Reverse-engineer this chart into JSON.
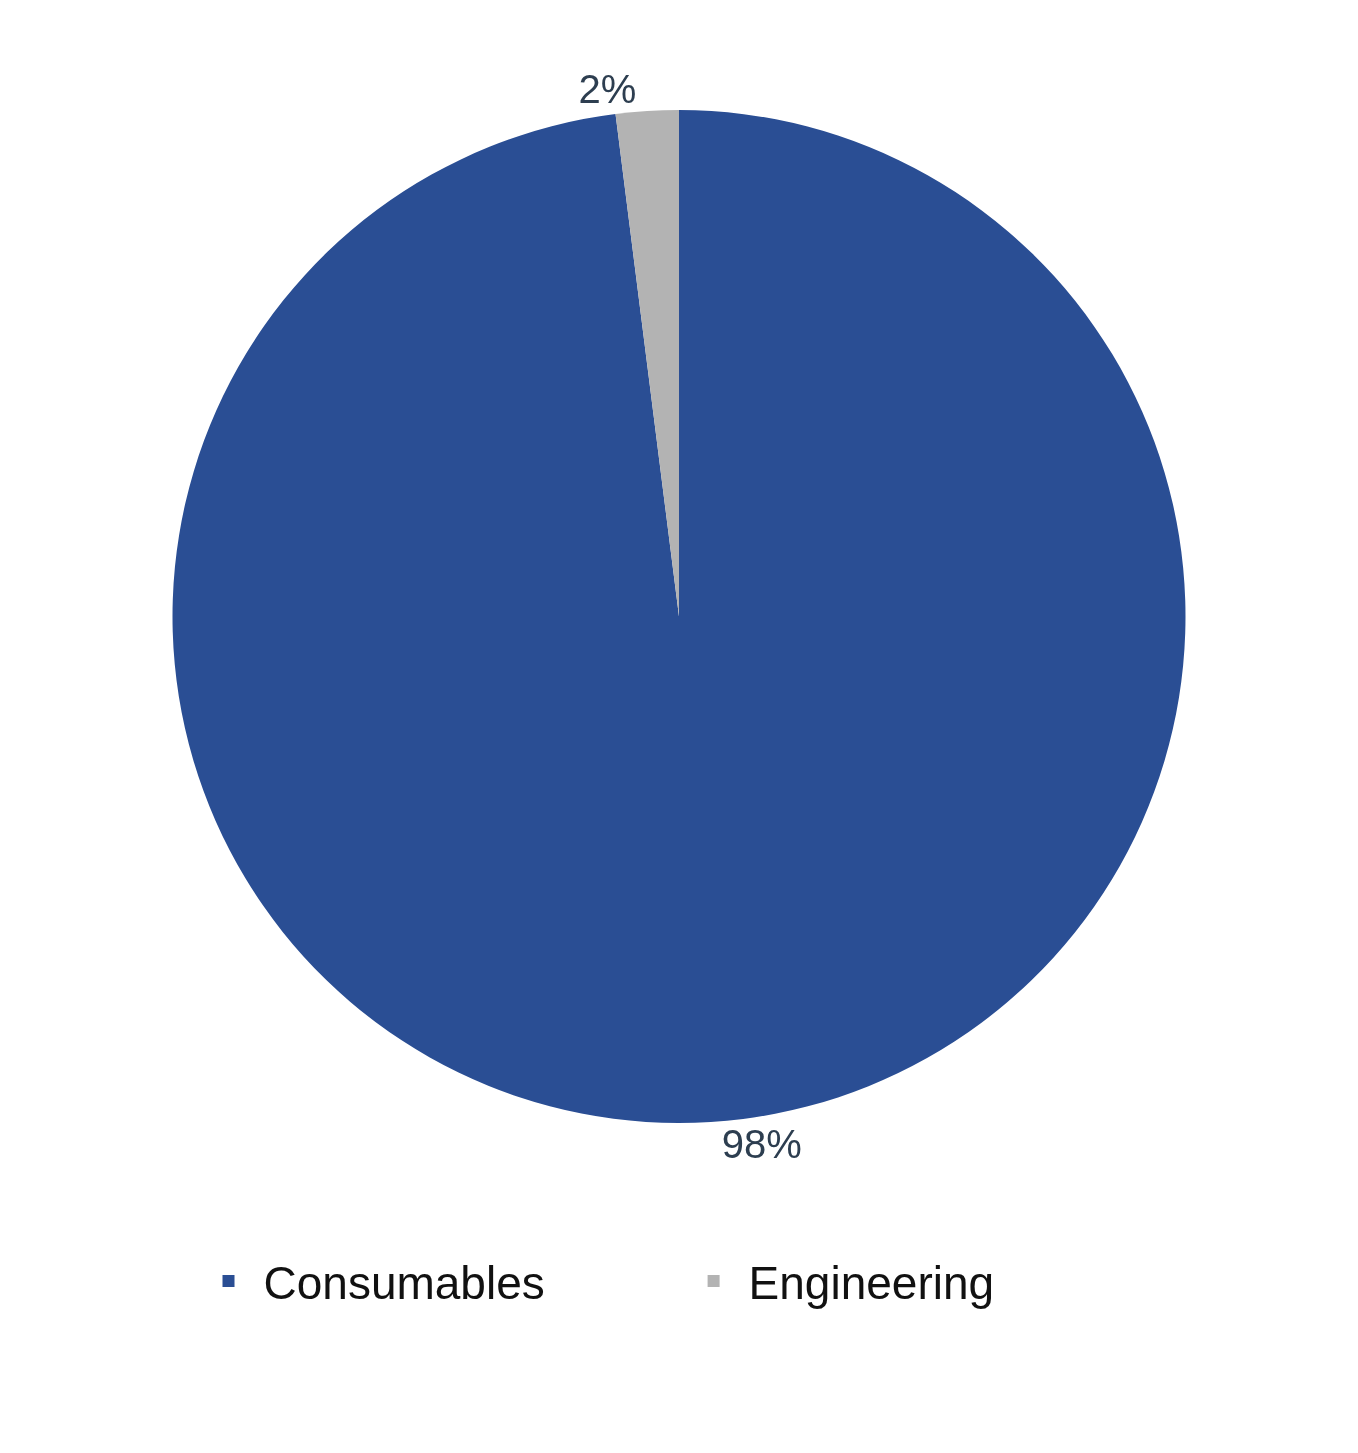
{
  "chart_data": {
    "type": "pie",
    "categories": [
      "Consumables",
      "Engineering"
    ],
    "values": [
      98,
      2
    ],
    "colors": [
      "#2a4e94",
      "#b3b3b3"
    ],
    "value_labels": [
      "98%",
      "2%"
    ],
    "legend": "bottom"
  }
}
